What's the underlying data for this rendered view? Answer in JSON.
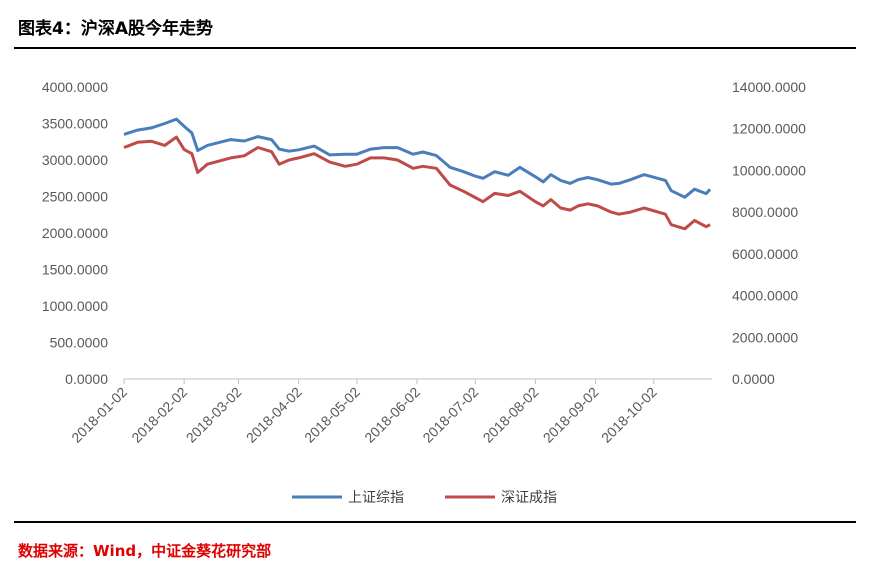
{
  "header": {
    "title": "图表4：沪深A股今年走势"
  },
  "footer": {
    "source": "数据来源：Wind，中证金葵花研究部"
  },
  "chart_data": {
    "type": "line",
    "title": "",
    "xlabel": "",
    "ylabel": "",
    "x_ticks": [
      "2018-01-02",
      "2018-02-02",
      "2018-03-02",
      "2018-04-02",
      "2018-05-02",
      "2018-06-02",
      "2018-07-02",
      "2018-08-02",
      "2018-09-02",
      "2018-10-02"
    ],
    "y_left": {
      "lim": [
        0,
        4000
      ],
      "ticks": [
        "0.0000",
        "500.0000",
        "1000.0000",
        "1500.0000",
        "2000.0000",
        "2500.0000",
        "3000.0000",
        "3500.0000",
        "4000.0000"
      ]
    },
    "y_right": {
      "lim": [
        0,
        14000
      ],
      "ticks": [
        "0.0000",
        "2000.0000",
        "4000.0000",
        "6000.0000",
        "8000.0000",
        "10000.0000",
        "12000.0000",
        "14000.0000"
      ]
    },
    "legend_position": "bottom",
    "grid": false,
    "series": [
      {
        "name": "上证综指",
        "axis": "left",
        "color": "#4a7ebb",
        "points": [
          [
            "2018-01-02",
            3350
          ],
          [
            "2018-01-09",
            3410
          ],
          [
            "2018-01-16",
            3440
          ],
          [
            "2018-01-23",
            3500
          ],
          [
            "2018-01-29",
            3560
          ],
          [
            "2018-02-02",
            3460
          ],
          [
            "2018-02-06",
            3370
          ],
          [
            "2018-02-09",
            3130
          ],
          [
            "2018-02-14",
            3200
          ],
          [
            "2018-02-26",
            3280
          ],
          [
            "2018-03-05",
            3260
          ],
          [
            "2018-03-12",
            3320
          ],
          [
            "2018-03-19",
            3280
          ],
          [
            "2018-03-23",
            3150
          ],
          [
            "2018-03-28",
            3120
          ],
          [
            "2018-04-02",
            3140
          ],
          [
            "2018-04-10",
            3190
          ],
          [
            "2018-04-18",
            3070
          ],
          [
            "2018-04-26",
            3080
          ],
          [
            "2018-05-02",
            3080
          ],
          [
            "2018-05-09",
            3150
          ],
          [
            "2018-05-16",
            3170
          ],
          [
            "2018-05-23",
            3170
          ],
          [
            "2018-05-31",
            3080
          ],
          [
            "2018-06-05",
            3110
          ],
          [
            "2018-06-12",
            3060
          ],
          [
            "2018-06-19",
            2900
          ],
          [
            "2018-06-26",
            2840
          ],
          [
            "2018-07-02",
            2780
          ],
          [
            "2018-07-06",
            2750
          ],
          [
            "2018-07-12",
            2840
          ],
          [
            "2018-07-19",
            2790
          ],
          [
            "2018-07-25",
            2900
          ],
          [
            "2018-08-02",
            2770
          ],
          [
            "2018-08-06",
            2700
          ],
          [
            "2018-08-10",
            2800
          ],
          [
            "2018-08-15",
            2720
          ],
          [
            "2018-08-20",
            2680
          ],
          [
            "2018-08-24",
            2730
          ],
          [
            "2018-08-29",
            2760
          ],
          [
            "2018-09-03",
            2730
          ],
          [
            "2018-09-10",
            2670
          ],
          [
            "2018-09-14",
            2680
          ],
          [
            "2018-09-20",
            2730
          ],
          [
            "2018-09-27",
            2800
          ],
          [
            "2018-10-08",
            2720
          ],
          [
            "2018-10-11",
            2580
          ],
          [
            "2018-10-18",
            2490
          ],
          [
            "2018-10-23",
            2600
          ],
          [
            "2018-10-29",
            2540
          ],
          [
            "2018-10-31",
            2600
          ]
        ]
      },
      {
        "name": "深证成指",
        "axis": "right",
        "color": "#be4b48",
        "points": [
          [
            "2018-01-02",
            11100
          ],
          [
            "2018-01-09",
            11350
          ],
          [
            "2018-01-16",
            11400
          ],
          [
            "2018-01-23",
            11200
          ],
          [
            "2018-01-29",
            11600
          ],
          [
            "2018-02-02",
            11000
          ],
          [
            "2018-02-06",
            10800
          ],
          [
            "2018-02-09",
            9900
          ],
          [
            "2018-02-14",
            10300
          ],
          [
            "2018-02-26",
            10600
          ],
          [
            "2018-03-05",
            10700
          ],
          [
            "2018-03-12",
            11100
          ],
          [
            "2018-03-19",
            10900
          ],
          [
            "2018-03-23",
            10300
          ],
          [
            "2018-03-28",
            10500
          ],
          [
            "2018-04-02",
            10600
          ],
          [
            "2018-04-10",
            10800
          ],
          [
            "2018-04-18",
            10400
          ],
          [
            "2018-04-26",
            10200
          ],
          [
            "2018-05-02",
            10300
          ],
          [
            "2018-05-09",
            10600
          ],
          [
            "2018-05-16",
            10600
          ],
          [
            "2018-05-23",
            10500
          ],
          [
            "2018-05-31",
            10100
          ],
          [
            "2018-06-05",
            10200
          ],
          [
            "2018-06-12",
            10100
          ],
          [
            "2018-06-19",
            9300
          ],
          [
            "2018-06-26",
            9000
          ],
          [
            "2018-07-02",
            8700
          ],
          [
            "2018-07-06",
            8500
          ],
          [
            "2018-07-12",
            8900
          ],
          [
            "2018-07-19",
            8800
          ],
          [
            "2018-07-25",
            9000
          ],
          [
            "2018-08-02",
            8500
          ],
          [
            "2018-08-06",
            8300
          ],
          [
            "2018-08-10",
            8600
          ],
          [
            "2018-08-15",
            8200
          ],
          [
            "2018-08-20",
            8100
          ],
          [
            "2018-08-24",
            8300
          ],
          [
            "2018-08-29",
            8400
          ],
          [
            "2018-09-03",
            8300
          ],
          [
            "2018-09-10",
            8000
          ],
          [
            "2018-09-14",
            7900
          ],
          [
            "2018-09-20",
            8000
          ],
          [
            "2018-09-27",
            8200
          ],
          [
            "2018-10-08",
            7900
          ],
          [
            "2018-10-11",
            7400
          ],
          [
            "2018-10-18",
            7200
          ],
          [
            "2018-10-23",
            7600
          ],
          [
            "2018-10-29",
            7300
          ],
          [
            "2018-10-31",
            7400
          ]
        ]
      }
    ]
  }
}
